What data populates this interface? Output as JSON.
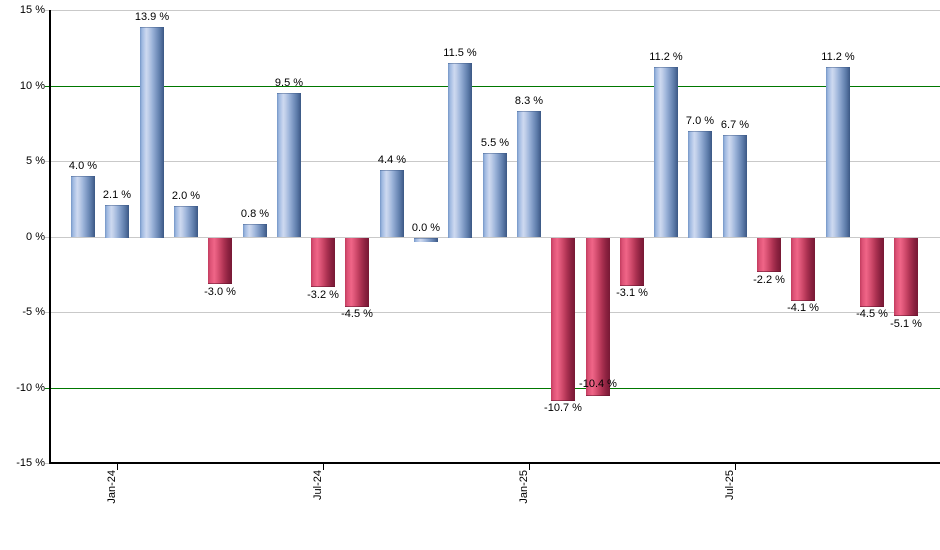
{
  "chart_data": {
    "type": "bar",
    "title": "",
    "xlabel": "",
    "ylabel": "",
    "ylim": [
      -15,
      15
    ],
    "grid": true,
    "legend": null,
    "y_ticks": [
      {
        "value": 15,
        "label": "15 %"
      },
      {
        "value": 10,
        "label": "10 %"
      },
      {
        "value": 5,
        "label": "5 %"
      },
      {
        "value": 0,
        "label": "0 %"
      },
      {
        "value": -5,
        "label": "-5 %"
      },
      {
        "value": -10,
        "label": "-10 %"
      },
      {
        "value": -15,
        "label": "-15 %"
      }
    ],
    "reference_lines": [
      {
        "value": 10
      },
      {
        "value": -10
      }
    ],
    "x_ticks": [
      {
        "bar_index": 1,
        "label": "Jan-24"
      },
      {
        "bar_index": 7,
        "label": "Jul-24"
      },
      {
        "bar_index": 13,
        "label": "Jan-25"
      },
      {
        "bar_index": 19,
        "label": "Jul-25"
      }
    ],
    "bars": [
      {
        "value": 4.0,
        "label": "4.0 %"
      },
      {
        "value": 2.1,
        "label": "2.1 %"
      },
      {
        "value": 13.9,
        "label": "13.9 %"
      },
      {
        "value": 2.0,
        "label": "2.0 %"
      },
      {
        "value": -3.0,
        "label": "-3.0 %"
      },
      {
        "value": 0.8,
        "label": "0.8 %"
      },
      {
        "value": 9.5,
        "label": "9.5 %"
      },
      {
        "value": -3.2,
        "label": "-3.2 %"
      },
      {
        "value": -4.5,
        "label": "-4.5 %"
      },
      {
        "value": 4.4,
        "label": "4.4 %"
      },
      {
        "value": 0.0,
        "label": "0.0 %"
      },
      {
        "value": 11.5,
        "label": "11.5 %"
      },
      {
        "value": 5.5,
        "label": "5.5 %"
      },
      {
        "value": 8.3,
        "label": "8.3 %"
      },
      {
        "value": -10.7,
        "label": "-10.7 %"
      },
      {
        "value": -10.4,
        "label": "-10.4 %",
        "label_dy": -20
      },
      {
        "value": -3.1,
        "label": "-3.1 %"
      },
      {
        "value": 11.2,
        "label": "11.2 %"
      },
      {
        "value": 7.0,
        "label": "7.0 %"
      },
      {
        "value": 6.7,
        "label": "6.7 %"
      },
      {
        "value": -2.2,
        "label": "-2.2 %"
      },
      {
        "value": -4.1,
        "label": "-4.1 %"
      },
      {
        "value": 11.2,
        "label": "11.2 %"
      },
      {
        "value": -4.5,
        "label": "-4.5 %"
      },
      {
        "value": -5.1,
        "label": "-5.1 %"
      }
    ],
    "colors": {
      "positive_bar": "#8faed9",
      "negative_bar": "#d04569",
      "reference_line": "#007800",
      "gridline": "#c9c9c9",
      "axis": "#000000",
      "label_text": "#000000"
    }
  }
}
